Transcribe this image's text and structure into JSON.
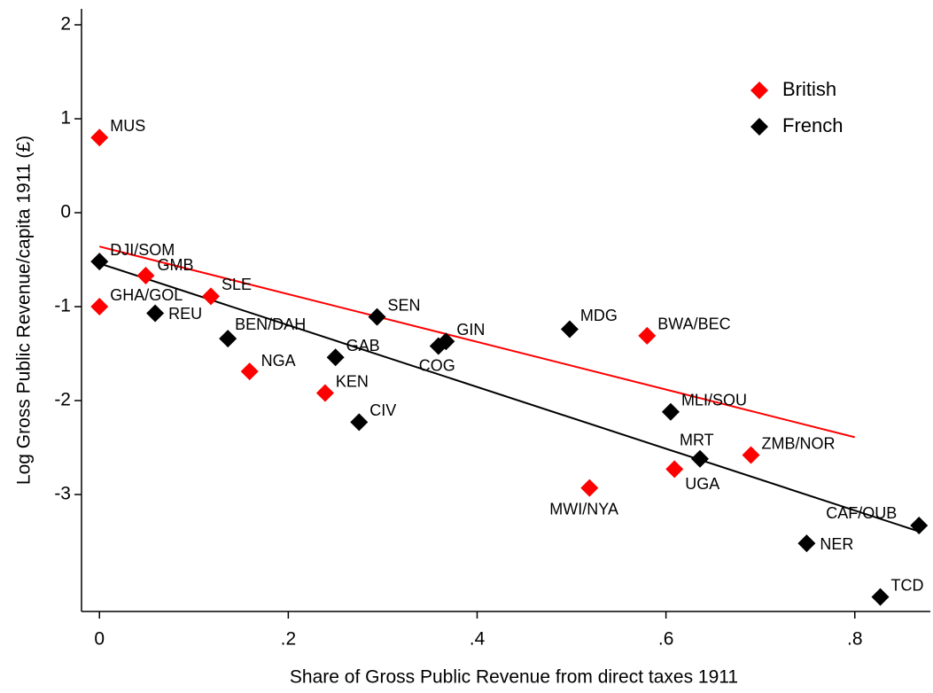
{
  "chart_data": {
    "type": "scatter",
    "xlabel": "Share of Gross Public Revenue from direct taxes 1911",
    "ylabel": "Log Gross Public Revenue/capita 1911 (£)",
    "xlim": [
      -0.019,
      0.88
    ],
    "ylim": [
      -4.245,
      2.17
    ],
    "xticks": [
      0,
      {
        "value": 0.2,
        "label": ".2"
      },
      {
        "value": 0.4,
        "label": ".4"
      },
      {
        "value": 0.6,
        "label": ".6"
      },
      {
        "value": 0.8,
        "label": ".8"
      }
    ],
    "yticks": [
      2,
      1,
      0,
      -1,
      -2,
      -3
    ],
    "legend": "upper right",
    "series": [
      {
        "name": "British",
        "color": "#ff0000",
        "labels": [
          "MUS",
          "GMB",
          "SLE",
          "GHA/GOL",
          "NGA",
          "KEN",
          "BWA/BEC",
          "ZMB/NOR",
          "UGA",
          "MWI/NYA"
        ],
        "x": [
          0,
          0.049,
          0.118,
          0,
          0.159,
          0.239,
          0.58,
          0.69,
          0.609,
          0.519
        ],
        "values": [
          0.8,
          -0.67,
          -0.89,
          -1.0,
          -1.69,
          -1.92,
          -1.31,
          -2.58,
          -2.73,
          -2.93
        ]
      },
      {
        "name": "French",
        "color": "#000000",
        "labels": [
          "DJI/SOM",
          "REU",
          "BEN/DAH",
          "GAB",
          "SEN",
          "CIV",
          "COG",
          "GIN",
          "MDG",
          "MLI/SOU",
          "MRT",
          "CAF/OUB",
          "NER",
          "TCD"
        ],
        "x": [
          0,
          0.059,
          0.136,
          0.25,
          0.294,
          0.275,
          0.359,
          0.367,
          0.498,
          0.605,
          0.636,
          0.868,
          0.749,
          0.827
        ],
        "values": [
          -0.52,
          -1.07,
          -1.34,
          -1.54,
          -1.11,
          -2.23,
          -1.42,
          -1.37,
          -1.24,
          -2.12,
          -2.62,
          -3.33,
          -3.52,
          -4.09
        ]
      }
    ],
    "fit_lines": [
      {
        "color": "#ff0000",
        "x": [
          0,
          0.8
        ],
        "values": [
          -0.36,
          -2.39
        ]
      },
      {
        "color": "#000000",
        "x": [
          0,
          0.87
        ],
        "values": [
          -0.54,
          -3.4
        ]
      }
    ]
  }
}
